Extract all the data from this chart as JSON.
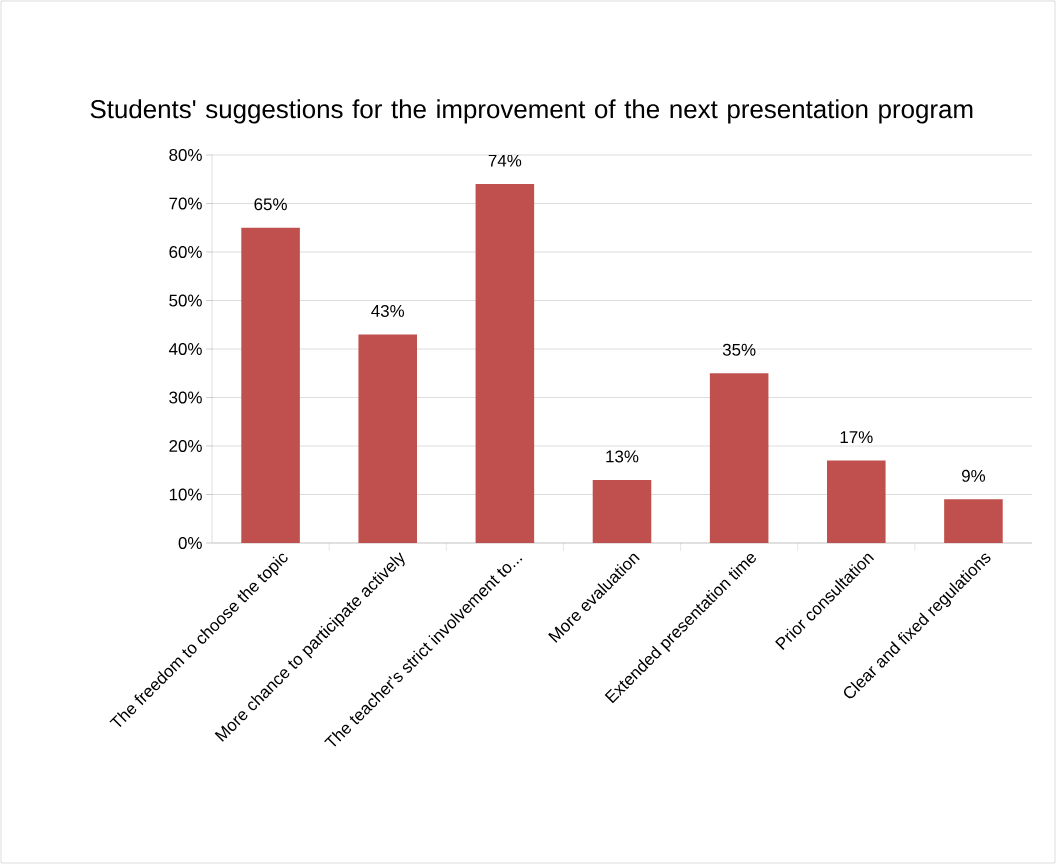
{
  "chart_data": {
    "type": "bar",
    "title": "Students' suggestions for the improvement of the next presentation program",
    "categories": [
      "The freedom to choose the topic",
      "More chance to participate actively",
      "The teacher's strict involvement to...",
      "More evaluation",
      "Extended presentation time",
      "Prior consultation",
      "Clear and fixed regulations"
    ],
    "values": [
      65,
      43,
      74,
      13,
      35,
      17,
      9
    ],
    "value_labels": [
      "65%",
      "43%",
      "74%",
      "13%",
      "35%",
      "17%",
      "9%"
    ],
    "color": "#c0504d",
    "ylim": [
      0,
      80
    ],
    "yticks": [
      {
        "value": 0,
        "label": "0%"
      },
      {
        "value": 10,
        "label": "10%"
      },
      {
        "value": 20,
        "label": "20%"
      },
      {
        "value": 30,
        "label": "30%"
      },
      {
        "value": 40,
        "label": "40%"
      },
      {
        "value": 50,
        "label": "50%"
      },
      {
        "value": 60,
        "label": "60%"
      },
      {
        "value": 70,
        "label": "70%"
      },
      {
        "value": 80,
        "label": "80%"
      }
    ],
    "grid": "y"
  }
}
